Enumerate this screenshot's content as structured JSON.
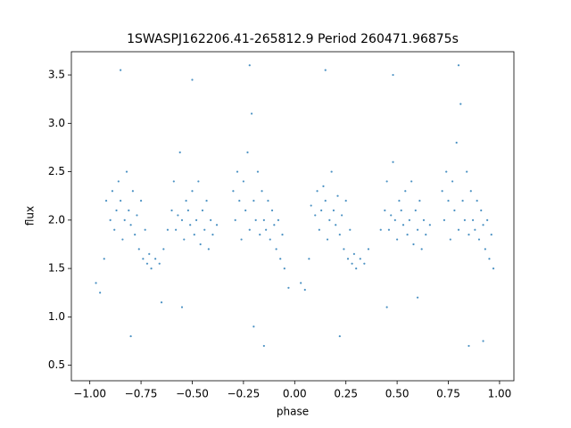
{
  "chart_data": {
    "type": "scatter",
    "title": "1SWASPJ162206.41-265812.9 Period 260471.96875s",
    "x_label": "phase",
    "y_label": "flux",
    "color": "#1f77b4",
    "xlim": [
      -1.09,
      1.07
    ],
    "ylim": [
      0.34,
      3.74
    ],
    "xticks": [
      {
        "value": -1.0,
        "label": "−1.00"
      },
      {
        "value": -0.75,
        "label": "−0.75"
      },
      {
        "value": -0.5,
        "label": "−0.50"
      },
      {
        "value": -0.25,
        "label": "−0.25"
      },
      {
        "value": 0,
        "label": "0.00"
      },
      {
        "value": 0.25,
        "label": "0.25"
      },
      {
        "value": 0.5,
        "label": "0.50"
      },
      {
        "value": 0.75,
        "label": "0.75"
      },
      {
        "value": 1.0,
        "label": "1.00"
      }
    ],
    "yticks": [
      0.5,
      {
        "value": 1.0,
        "label": "1.0"
      },
      1.5,
      {
        "value": 2.0,
        "label": "2.0"
      },
      2.5,
      {
        "value": 3.0,
        "label": "3.0"
      },
      3.5
    ],
    "x": [
      -0.97,
      -0.95,
      -0.93,
      -0.92,
      -0.9,
      -0.89,
      -0.88,
      -0.87,
      -0.86,
      -0.85,
      -0.84,
      -0.83,
      -0.82,
      -0.81,
      -0.8,
      -0.79,
      -0.78,
      -0.77,
      -0.76,
      -0.75,
      -0.74,
      -0.73,
      -0.72,
      -0.71,
      -0.7,
      -0.68,
      -0.66,
      -0.64,
      -0.62,
      -0.6,
      -0.59,
      -0.58,
      -0.57,
      -0.56,
      -0.55,
      -0.54,
      -0.53,
      -0.52,
      -0.51,
      -0.5,
      -0.49,
      -0.48,
      -0.47,
      -0.46,
      -0.45,
      -0.44,
      -0.43,
      -0.42,
      -0.41,
      -0.4,
      -0.38,
      -0.3,
      -0.29,
      -0.28,
      -0.27,
      -0.26,
      -0.25,
      -0.24,
      -0.23,
      -0.22,
      -0.21,
      -0.2,
      -0.19,
      -0.18,
      -0.17,
      -0.16,
      -0.15,
      -0.14,
      -0.13,
      -0.12,
      -0.11,
      -0.1,
      -0.09,
      -0.08,
      -0.07,
      -0.06,
      -0.05,
      -0.03,
      -0.85,
      -0.5,
      -0.22,
      -0.8,
      -0.2,
      -0.15,
      -0.55,
      -0.65,
      0.03,
      0.05,
      0.07,
      0.08,
      0.1,
      0.11,
      0.12,
      0.13,
      0.14,
      0.15,
      0.16,
      0.17,
      0.18,
      0.19,
      0.2,
      0.21,
      0.22,
      0.23,
      0.24,
      0.25,
      0.26,
      0.27,
      0.28,
      0.29,
      0.3,
      0.32,
      0.34,
      0.36,
      0.42,
      0.44,
      0.45,
      0.46,
      0.47,
      0.48,
      0.49,
      0.5,
      0.51,
      0.52,
      0.53,
      0.54,
      0.55,
      0.56,
      0.57,
      0.58,
      0.59,
      0.6,
      0.61,
      0.62,
      0.63,
      0.64,
      0.66,
      0.72,
      0.73,
      0.74,
      0.75,
      0.76,
      0.77,
      0.78,
      0.79,
      0.8,
      0.81,
      0.82,
      0.83,
      0.84,
      0.85,
      0.86,
      0.87,
      0.88,
      0.89,
      0.9,
      0.91,
      0.92,
      0.93,
      0.94,
      0.95,
      0.96,
      0.97,
      0.15,
      0.48,
      0.8,
      0.22,
      0.85,
      0.92,
      0.45,
      0.6
    ],
    "values": [
      1.35,
      1.25,
      1.6,
      2.2,
      2.0,
      2.3,
      1.9,
      2.1,
      2.4,
      2.2,
      1.8,
      2.0,
      2.5,
      2.1,
      1.95,
      2.3,
      1.85,
      2.05,
      1.7,
      2.2,
      1.6,
      1.9,
      1.55,
      1.65,
      1.5,
      1.6,
      1.55,
      1.7,
      1.9,
      2.1,
      2.4,
      1.9,
      2.05,
      2.7,
      2.0,
      1.8,
      2.2,
      2.1,
      1.95,
      2.3,
      1.85,
      2.0,
      2.4,
      1.75,
      2.1,
      1.9,
      2.2,
      1.7,
      2.0,
      1.85,
      1.95,
      2.3,
      2.0,
      2.5,
      2.2,
      1.8,
      2.4,
      2.1,
      2.7,
      1.9,
      3.1,
      2.2,
      2.0,
      2.5,
      1.85,
      2.3,
      2.0,
      1.9,
      2.2,
      1.8,
      2.1,
      1.95,
      1.7,
      2.0,
      1.6,
      1.85,
      1.5,
      1.3,
      3.55,
      3.45,
      3.6,
      0.8,
      0.9,
      0.7,
      1.1,
      1.15,
      1.35,
      1.28,
      1.6,
      2.15,
      2.05,
      2.3,
      1.9,
      2.1,
      2.35,
      2.2,
      1.8,
      2.0,
      2.5,
      2.1,
      1.95,
      2.25,
      1.85,
      2.05,
      1.7,
      2.2,
      1.6,
      1.9,
      1.55,
      1.65,
      1.5,
      1.6,
      1.55,
      1.7,
      1.9,
      2.1,
      2.4,
      1.9,
      2.05,
      2.6,
      2.0,
      1.8,
      2.2,
      2.1,
      1.95,
      2.3,
      1.85,
      2.0,
      2.4,
      1.75,
      2.1,
      1.9,
      2.2,
      1.7,
      2.0,
      1.85,
      1.95,
      2.3,
      2.0,
      2.5,
      2.2,
      1.8,
      2.4,
      2.1,
      2.8,
      1.9,
      3.2,
      2.2,
      2.0,
      2.5,
      1.85,
      2.3,
      2.0,
      1.9,
      2.2,
      1.8,
      2.1,
      1.95,
      1.7,
      2.0,
      1.6,
      1.85,
      1.5,
      3.55,
      3.5,
      3.6,
      0.8,
      0.7,
      0.75,
      1.1,
      1.2
    ]
  }
}
